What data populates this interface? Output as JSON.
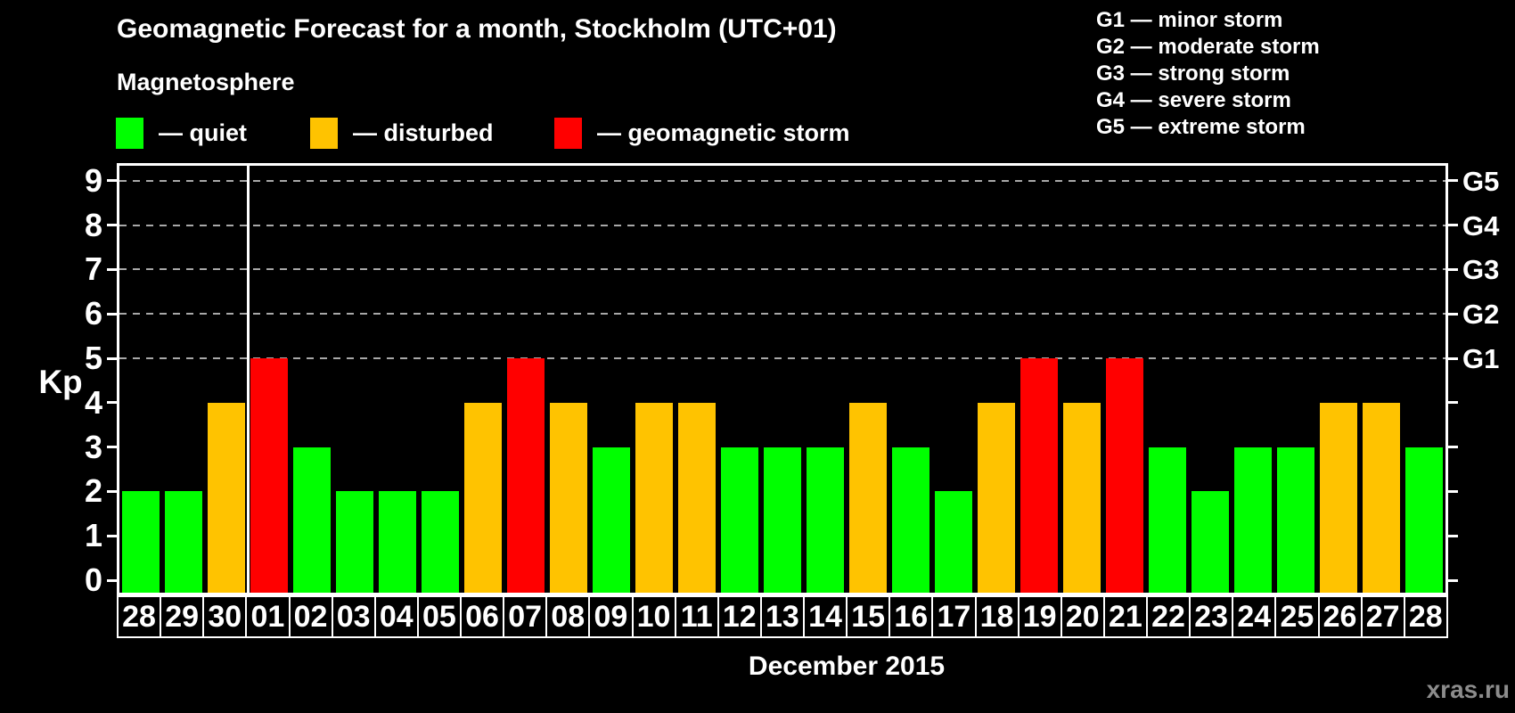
{
  "header": {
    "title": "Geomagnetic Forecast for a month, Stockholm (UTC+01)",
    "subtitle": "Magnetosphere",
    "legend": [
      {
        "key": "quiet",
        "label": "— quiet",
        "color": "#00ff00"
      },
      {
        "key": "disturbed",
        "label": "— disturbed",
        "color": "#ffc300"
      },
      {
        "key": "storm",
        "label": "— geomagnetic storm",
        "color": "#ff0000"
      }
    ],
    "g_scale_legend": [
      "G1 — minor storm",
      "G2 — moderate storm",
      "G3 — strong storm",
      "G4 — severe storm",
      "G5 — extreme storm"
    ]
  },
  "chart_data": {
    "type": "bar",
    "title": "Geomagnetic Forecast for a month, Stockholm (UTC+01)",
    "xlabel": "December 2015",
    "ylabel": "Kp",
    "ylim": [
      0,
      9.4
    ],
    "grid": "dashed horizontal gridlines at Kp 5-9 (storm levels G1-G5)",
    "legend_position": "top-left",
    "categories": [
      "28",
      "29",
      "30",
      "01",
      "02",
      "03",
      "04",
      "05",
      "06",
      "07",
      "08",
      "09",
      "10",
      "11",
      "12",
      "13",
      "14",
      "15",
      "16",
      "17",
      "18",
      "19",
      "20",
      "21",
      "22",
      "23",
      "24",
      "25",
      "26",
      "27",
      "28"
    ],
    "values": [
      2,
      2,
      4,
      5,
      3,
      2,
      2,
      2,
      4,
      5,
      4,
      3,
      4,
      4,
      3,
      3,
      3,
      4,
      3,
      2,
      4,
      5,
      4,
      5,
      3,
      2,
      3,
      3,
      4,
      4,
      3
    ],
    "statuses": [
      "quiet",
      "quiet",
      "disturbed",
      "storm",
      "quiet",
      "quiet",
      "quiet",
      "quiet",
      "disturbed",
      "storm",
      "disturbed",
      "quiet",
      "disturbed",
      "disturbed",
      "quiet",
      "quiet",
      "quiet",
      "disturbed",
      "quiet",
      "quiet",
      "disturbed",
      "storm",
      "disturbed",
      "storm",
      "quiet",
      "quiet",
      "quiet",
      "quiet",
      "disturbed",
      "disturbed",
      "quiet"
    ],
    "status_colors": {
      "quiet": "#00ff00",
      "disturbed": "#ffc300",
      "storm": "#ff0000"
    },
    "left_ticks": [
      0,
      1,
      2,
      3,
      4,
      5,
      6,
      7,
      8,
      9
    ],
    "right_axis": [
      {
        "kp": 5,
        "label": "G1"
      },
      {
        "kp": 6,
        "label": "G2"
      },
      {
        "kp": 7,
        "label": "G3"
      },
      {
        "kp": 8,
        "label": "G4"
      },
      {
        "kp": 9,
        "label": "G5"
      }
    ],
    "gridlines_kp": [
      5,
      6,
      7,
      8,
      9
    ],
    "month_separator_after_index": 2,
    "prev_month_days": 3
  },
  "footer": {
    "month_label": "December 2015",
    "watermark": "xras.ru"
  }
}
